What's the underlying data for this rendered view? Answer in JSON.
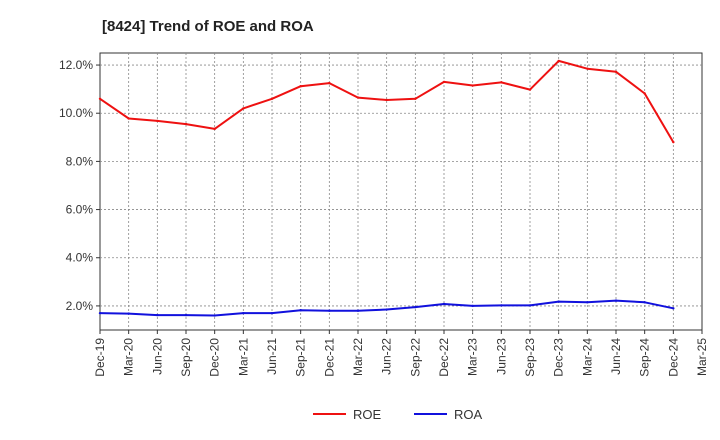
{
  "chart_data": {
    "type": "line",
    "title": "[8424]  Trend of ROE and ROA",
    "xlabel": "",
    "ylabel": "",
    "x": [
      "Dec-19",
      "Mar-20",
      "Jun-20",
      "Sep-20",
      "Dec-20",
      "Mar-21",
      "Jun-21",
      "Sep-21",
      "Dec-21",
      "Mar-22",
      "Jun-22",
      "Sep-22",
      "Dec-22",
      "Mar-23",
      "Jun-23",
      "Sep-23",
      "Dec-23",
      "Mar-24",
      "Jun-24",
      "Sep-24",
      "Dec-24"
    ],
    "x_ticks": [
      "Dec-19",
      "Mar-20",
      "Jun-20",
      "Sep-20",
      "Dec-20",
      "Mar-21",
      "Jun-21",
      "Sep-21",
      "Dec-21",
      "Mar-22",
      "Jun-22",
      "Sep-22",
      "Dec-22",
      "Mar-23",
      "Jun-23",
      "Sep-23",
      "Dec-23",
      "Mar-24",
      "Jun-24",
      "Sep-24",
      "Dec-24",
      "Mar-25"
    ],
    "y_ticks": [
      "2.0%",
      "4.0%",
      "6.0%",
      "8.0%",
      "10.0%",
      "12.0%"
    ],
    "ylim": [
      1.0,
      12.5
    ],
    "grid": true,
    "legend_position": "bottom-center",
    "series": [
      {
        "name": "ROE",
        "color": "#ee1111",
        "values": [
          10.6,
          9.78,
          9.68,
          9.55,
          9.35,
          10.2,
          10.6,
          11.12,
          11.25,
          10.65,
          10.55,
          10.6,
          11.3,
          11.15,
          11.28,
          10.98,
          12.17,
          11.85,
          11.72,
          10.82,
          8.8
        ]
      },
      {
        "name": "ROA",
        "color": "#1111dd",
        "values": [
          1.7,
          1.68,
          1.62,
          1.62,
          1.6,
          1.7,
          1.7,
          1.82,
          1.8,
          1.8,
          1.85,
          1.95,
          2.08,
          2.0,
          2.02,
          2.02,
          2.18,
          2.15,
          2.22,
          2.15,
          1.9
        ]
      }
    ]
  }
}
